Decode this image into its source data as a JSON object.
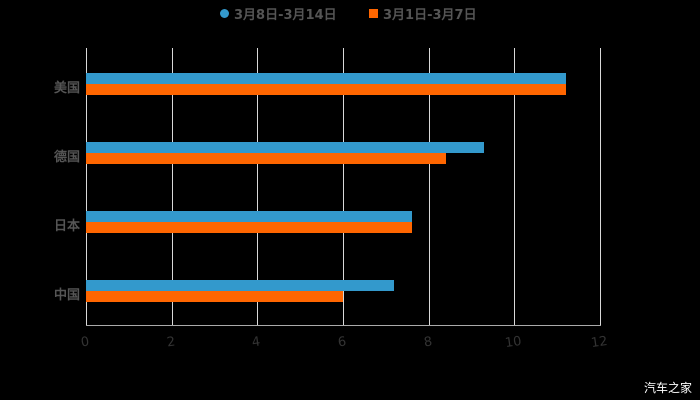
{
  "chart_data": {
    "type": "bar",
    "orientation": "horizontal",
    "title": "",
    "xlabel": "",
    "ylabel": "",
    "categories": [
      "美国",
      "德国",
      "日本",
      "中国"
    ],
    "series": [
      {
        "name": "3月8日-3月14日",
        "color": "#3399cc",
        "values": [
          11.2,
          9.3,
          7.6,
          7.2
        ]
      },
      {
        "name": "3月1日-3月7日",
        "color": "#ff6600",
        "values": [
          11.2,
          8.4,
          7.6,
          6.0
        ]
      }
    ],
    "xticks": [
      "0",
      "2",
      "4",
      "6",
      "8",
      "10",
      "12"
    ],
    "xlim": [
      0,
      12
    ],
    "grid": true,
    "legend_position": "top"
  },
  "legend": {
    "item1": "3月8日-3月14日",
    "item2": "3月1日-3月7日"
  },
  "watermark": "汽车之家"
}
